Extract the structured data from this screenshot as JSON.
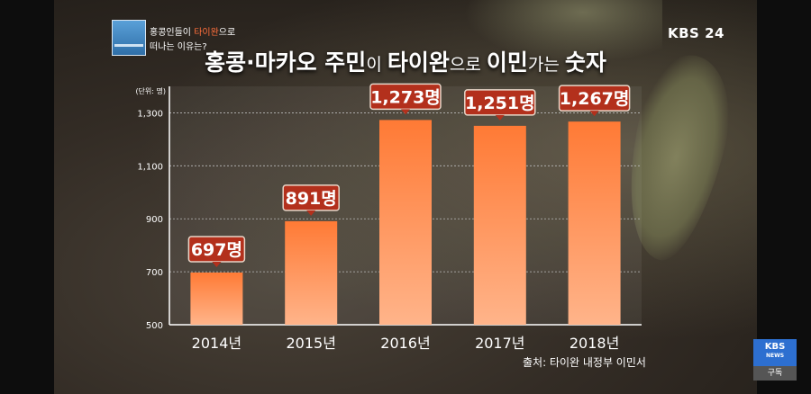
{
  "overlay": {
    "caption_line1_pre": "홍콩인들이 ",
    "caption_line1_highlight": "타이완",
    "caption_line1_post": "으로",
    "caption_line2": "떠나는 이유는?",
    "channel": "KBS 24",
    "news_badge": "KBS",
    "news_badge_sub": "NEWS",
    "subscribe": "구독"
  },
  "chart_data": {
    "type": "bar",
    "title_parts": [
      {
        "text": "홍콩·마카오 주민",
        "bold": true
      },
      {
        "text": "이 ",
        "bold": false
      },
      {
        "text": "타이완",
        "bold": true
      },
      {
        "text": "으로 ",
        "bold": false
      },
      {
        "text": "이민",
        "bold": true
      },
      {
        "text": "가는 ",
        "bold": false
      },
      {
        "text": "숫자",
        "bold": true
      }
    ],
    "unit_label": "(단위: 명)",
    "categories": [
      "2014년",
      "2015년",
      "2016년",
      "2017년",
      "2018년"
    ],
    "values": [
      697,
      891,
      1273,
      1251,
      1267
    ],
    "value_labels": [
      "697명",
      "891명",
      "1,273명",
      "1,251명",
      "1,267명"
    ],
    "ylim": [
      500,
      1400
    ],
    "yticks": [
      500,
      700,
      900,
      1100,
      1300
    ],
    "ytick_labels": [
      "500",
      "700",
      "900",
      "1,100",
      "1,300"
    ],
    "grid": true,
    "bar_color": "#ff7a35",
    "label_box_color": "#b3301c",
    "source": "출처: 타이완 내정부 이민서"
  }
}
